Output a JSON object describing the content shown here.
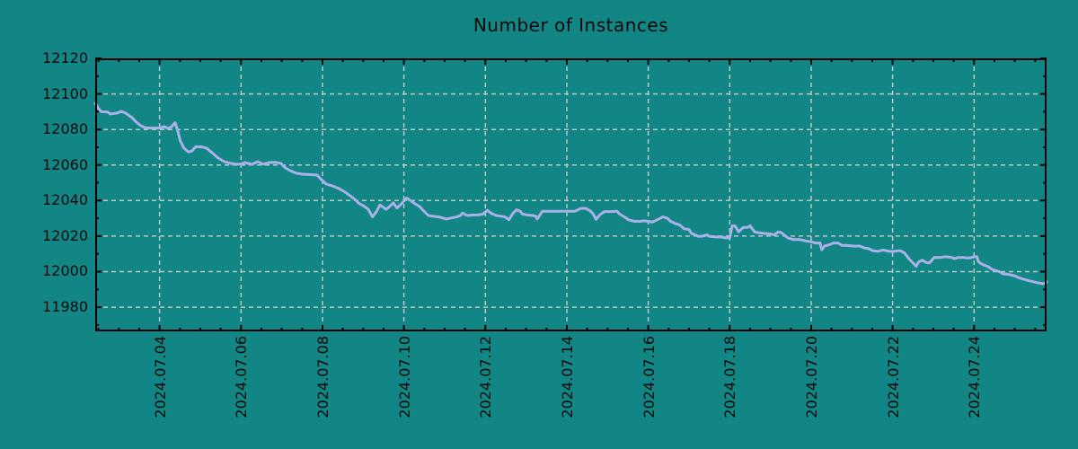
{
  "title": "Number of Instances",
  "colors": {
    "background": "#128585",
    "line": "#aab1e8",
    "grid": "#bcc6c6",
    "axis": "#000000",
    "text": "#0a0a0a"
  },
  "chart_data": {
    "type": "line",
    "title": "Number of Instances",
    "xlabel": "",
    "ylabel": "",
    "legend": "none",
    "grid": "dashed, at major ticks",
    "xlim_days": [
      2.42,
      25.78
    ],
    "ylim": [
      11966.4,
      12120
    ],
    "y_ticks": [
      11980,
      12000,
      12020,
      12040,
      12060,
      12080,
      12100,
      12120
    ],
    "y_minor_step": 10,
    "x_tick_days": [
      4,
      6,
      8,
      10,
      12,
      14,
      16,
      18,
      20,
      22,
      24
    ],
    "x_tick_labels": [
      "2024.07.04",
      "2024.07.06",
      "2024.07.08",
      "2024.07.10",
      "2024.07.12",
      "2024.07.14",
      "2024.07.16",
      "2024.07.18",
      "2024.07.20",
      "2024.07.22",
      "2024.07.24"
    ],
    "x_minor_step_days": 0.5,
    "series": [
      {
        "name": "Number of Instances",
        "x_unit": "day of 2024.07 (decimal)",
        "points": [
          [
            2.42,
            12094.7
          ],
          [
            2.51,
            12091.5
          ],
          [
            2.57,
            12090.0
          ],
          [
            2.73,
            12089.8
          ],
          [
            2.79,
            12088.7
          ],
          [
            2.95,
            12089.2
          ],
          [
            3.06,
            12090.2
          ],
          [
            3.17,
            12089.2
          ],
          [
            3.32,
            12086.7
          ],
          [
            3.43,
            12084.1
          ],
          [
            3.54,
            12082.1
          ],
          [
            3.65,
            12081.0
          ],
          [
            3.83,
            12080.8
          ],
          [
            4.0,
            12080.8
          ],
          [
            4.12,
            12081.6
          ],
          [
            4.2,
            12080.6
          ],
          [
            4.29,
            12081.4
          ],
          [
            4.38,
            12083.8
          ],
          [
            4.45,
            12079.0
          ],
          [
            4.51,
            12073.5
          ],
          [
            4.6,
            12069.5
          ],
          [
            4.71,
            12067.3
          ],
          [
            4.8,
            12068.0
          ],
          [
            4.89,
            12070.4
          ],
          [
            5.04,
            12070.2
          ],
          [
            5.15,
            12069.5
          ],
          [
            5.31,
            12066.5
          ],
          [
            5.44,
            12063.9
          ],
          [
            5.59,
            12061.9
          ],
          [
            5.75,
            12060.9
          ],
          [
            5.88,
            12060.5
          ],
          [
            6.0,
            12060.5
          ],
          [
            6.1,
            12061.4
          ],
          [
            6.26,
            12060.4
          ],
          [
            6.41,
            12061.9
          ],
          [
            6.54,
            12060.5
          ],
          [
            6.7,
            12061.4
          ],
          [
            6.85,
            12061.5
          ],
          [
            6.98,
            12060.9
          ],
          [
            7.09,
            12058.4
          ],
          [
            7.2,
            12056.9
          ],
          [
            7.36,
            12055.4
          ],
          [
            7.51,
            12054.8
          ],
          [
            7.69,
            12054.6
          ],
          [
            7.87,
            12054.3
          ],
          [
            7.95,
            12052.3
          ],
          [
            8.09,
            12049.3
          ],
          [
            8.24,
            12048.3
          ],
          [
            8.4,
            12046.8
          ],
          [
            8.53,
            12045.1
          ],
          [
            8.68,
            12042.7
          ],
          [
            8.79,
            12040.7
          ],
          [
            8.9,
            12038.3
          ],
          [
            9.01,
            12037.0
          ],
          [
            9.12,
            12035.2
          ],
          [
            9.23,
            12030.8
          ],
          [
            9.32,
            12033.6
          ],
          [
            9.41,
            12037.5
          ],
          [
            9.5,
            12036.1
          ],
          [
            9.56,
            12035.0
          ],
          [
            9.65,
            12036.7
          ],
          [
            9.74,
            12038.7
          ],
          [
            9.83,
            12035.8
          ],
          [
            9.92,
            12037.7
          ],
          [
            10.0,
            12039.7
          ],
          [
            10.07,
            12041.4
          ],
          [
            10.18,
            12039.7
          ],
          [
            10.27,
            12038.2
          ],
          [
            10.38,
            12036.7
          ],
          [
            10.49,
            12034.1
          ],
          [
            10.6,
            12031.6
          ],
          [
            10.73,
            12031.1
          ],
          [
            10.89,
            12030.6
          ],
          [
            11.04,
            12029.6
          ],
          [
            11.17,
            12030.2
          ],
          [
            11.28,
            12030.7
          ],
          [
            11.39,
            12031.6
          ],
          [
            11.44,
            12033.0
          ],
          [
            11.55,
            12031.6
          ],
          [
            11.7,
            12031.9
          ],
          [
            11.83,
            12031.9
          ],
          [
            11.94,
            12032.4
          ],
          [
            12.05,
            12034.5
          ],
          [
            12.16,
            12032.6
          ],
          [
            12.27,
            12031.6
          ],
          [
            12.38,
            12031.2
          ],
          [
            12.49,
            12030.7
          ],
          [
            12.58,
            12029.2
          ],
          [
            12.67,
            12032.6
          ],
          [
            12.76,
            12034.8
          ],
          [
            12.85,
            12034.1
          ],
          [
            12.91,
            12032.4
          ],
          [
            13.02,
            12031.9
          ],
          [
            13.16,
            12031.6
          ],
          [
            13.24,
            12031.2
          ],
          [
            13.27,
            12029.6
          ],
          [
            13.33,
            12031.6
          ],
          [
            13.4,
            12034.0
          ],
          [
            13.6,
            12034.0
          ],
          [
            13.8,
            12034.0
          ],
          [
            14.0,
            12034.0
          ],
          [
            14.2,
            12034.0
          ],
          [
            14.35,
            12035.6
          ],
          [
            14.46,
            12035.6
          ],
          [
            14.57,
            12034.3
          ],
          [
            14.64,
            12032.6
          ],
          [
            14.72,
            12029.4
          ],
          [
            14.81,
            12032.0
          ],
          [
            14.92,
            12033.8
          ],
          [
            15.08,
            12033.8
          ],
          [
            15.23,
            12034.0
          ],
          [
            15.3,
            12032.4
          ],
          [
            15.41,
            12030.8
          ],
          [
            15.52,
            12029.1
          ],
          [
            15.67,
            12028.3
          ],
          [
            15.81,
            12028.3
          ],
          [
            15.89,
            12028.6
          ],
          [
            16.0,
            12028.3
          ],
          [
            16.11,
            12028.0
          ],
          [
            16.25,
            12029.5
          ],
          [
            16.36,
            12030.8
          ],
          [
            16.47,
            12030.0
          ],
          [
            16.55,
            12028.3
          ],
          [
            16.66,
            12027.1
          ],
          [
            16.77,
            12026.3
          ],
          [
            16.88,
            12024.1
          ],
          [
            17.0,
            12023.7
          ],
          [
            17.06,
            12021.5
          ],
          [
            17.15,
            12020.7
          ],
          [
            17.22,
            12019.9
          ],
          [
            17.33,
            12019.9
          ],
          [
            17.44,
            12020.7
          ],
          [
            17.5,
            12019.9
          ],
          [
            17.66,
            12019.5
          ],
          [
            17.79,
            12019.5
          ],
          [
            17.9,
            12019.0
          ],
          [
            18.0,
            12019.0
          ],
          [
            18.06,
            12025.7
          ],
          [
            18.13,
            12025.7
          ],
          [
            18.22,
            12022.4
          ],
          [
            18.33,
            12024.9
          ],
          [
            18.44,
            12024.9
          ],
          [
            18.5,
            12025.7
          ],
          [
            18.61,
            12022.4
          ],
          [
            18.72,
            12021.9
          ],
          [
            18.83,
            12021.5
          ],
          [
            18.99,
            12021.2
          ],
          [
            19.1,
            12020.7
          ],
          [
            19.19,
            12022.4
          ],
          [
            19.27,
            12021.9
          ],
          [
            19.43,
            12019.0
          ],
          [
            19.56,
            12018.1
          ],
          [
            19.71,
            12018.1
          ],
          [
            19.87,
            12017.3
          ],
          [
            20.0,
            12016.8
          ],
          [
            20.11,
            12016.1
          ],
          [
            20.22,
            12016.1
          ],
          [
            20.26,
            12012.3
          ],
          [
            20.33,
            12014.4
          ],
          [
            20.44,
            12015.1
          ],
          [
            20.55,
            12016.1
          ],
          [
            20.66,
            12016.1
          ],
          [
            20.75,
            12014.8
          ],
          [
            20.88,
            12014.8
          ],
          [
            21.03,
            12014.4
          ],
          [
            21.19,
            12014.4
          ],
          [
            21.3,
            12013.4
          ],
          [
            21.41,
            12013.0
          ],
          [
            21.52,
            12011.7
          ],
          [
            21.63,
            12011.4
          ],
          [
            21.76,
            12012.2
          ],
          [
            21.92,
            12011.4
          ],
          [
            22.03,
            12011.4
          ],
          [
            22.14,
            12011.7
          ],
          [
            22.2,
            12011.7
          ],
          [
            22.29,
            12010.5
          ],
          [
            22.4,
            12007.2
          ],
          [
            22.51,
            12004.7
          ],
          [
            22.58,
            12003.0
          ],
          [
            22.64,
            12005.5
          ],
          [
            22.73,
            12006.4
          ],
          [
            22.84,
            12005.0
          ],
          [
            22.91,
            12005.0
          ],
          [
            23.02,
            12008.0
          ],
          [
            23.17,
            12008.0
          ],
          [
            23.3,
            12008.4
          ],
          [
            23.46,
            12008.0
          ],
          [
            23.52,
            12007.3
          ],
          [
            23.61,
            12008.0
          ],
          [
            23.74,
            12008.0
          ],
          [
            23.83,
            12007.7
          ],
          [
            23.94,
            12008.0
          ],
          [
            24.0,
            12008.4
          ],
          [
            24.07,
            12008.4
          ],
          [
            24.11,
            12005.5
          ],
          [
            24.22,
            12003.9
          ],
          [
            24.33,
            12003.0
          ],
          [
            24.44,
            12001.3
          ],
          [
            24.55,
            12000.5
          ],
          [
            24.62,
            12000.0
          ],
          [
            24.71,
            11998.8
          ],
          [
            24.84,
            11998.5
          ],
          [
            24.93,
            11998.0
          ],
          [
            25.0,
            11997.7
          ],
          [
            25.1,
            11996.5
          ],
          [
            25.21,
            11995.8
          ],
          [
            25.33,
            11995.0
          ],
          [
            25.44,
            11994.4
          ],
          [
            25.55,
            11993.8
          ],
          [
            25.65,
            11993.4
          ],
          [
            25.72,
            11993.2
          ],
          [
            25.78,
            11994.2
          ]
        ]
      }
    ]
  }
}
